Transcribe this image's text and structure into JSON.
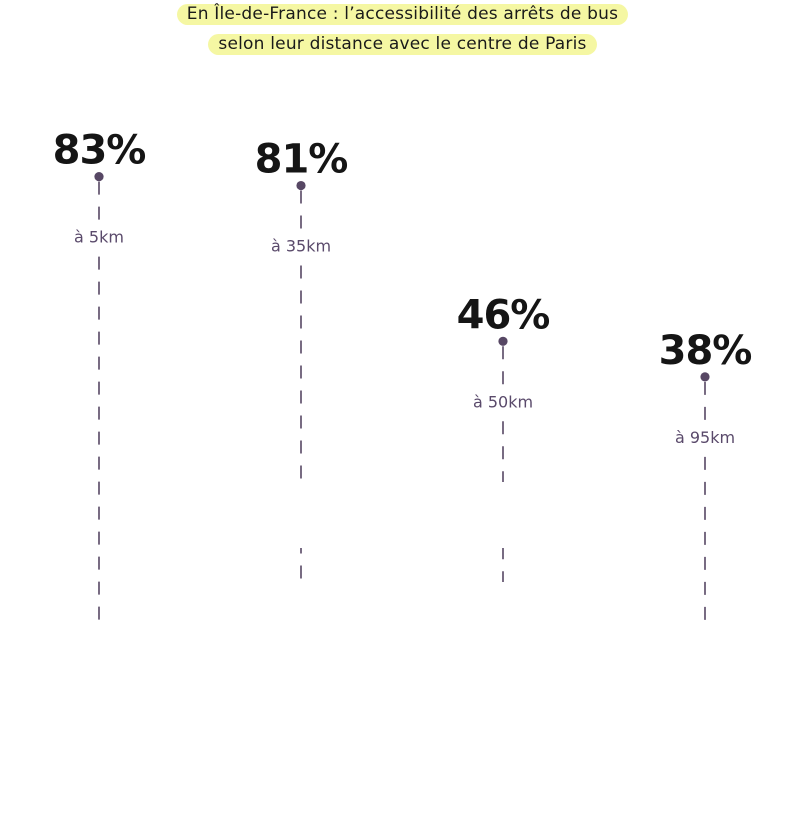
{
  "title": {
    "line1": "En Île-de-France : l’accessibilité des arrêts de bus",
    "line2": "selon leur distance avec le centre de Paris"
  },
  "colors": {
    "highlight": "#f5f7a3",
    "stem": "#574764",
    "value_text": "#151515",
    "distance_text": "#5a4a6b"
  },
  "chart_data": {
    "type": "lollipop",
    "title": "En Île-de-France : l’accessibilité des arrêts de bus selon leur distance avec le centre de Paris",
    "categories": [
      "à 5km",
      "à 35km",
      "à 50km",
      "à 95km"
    ],
    "values": [
      83,
      81,
      46,
      38
    ],
    "labels": [
      "83%",
      "81%",
      "46%",
      "38%"
    ],
    "unit": "%",
    "grid": false
  }
}
